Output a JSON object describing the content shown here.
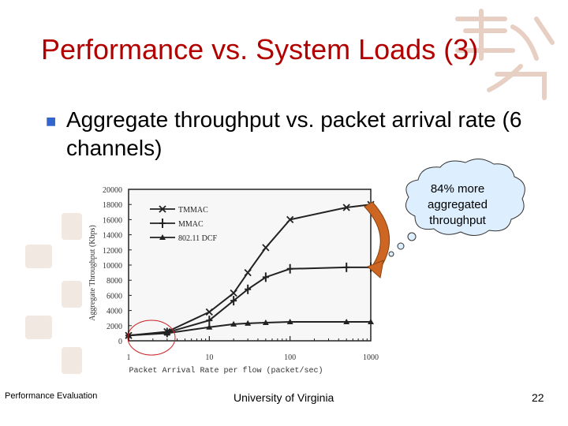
{
  "slide": {
    "title": "Performance vs. System Loads (3)",
    "bullet": "Aggregate throughput vs. packet arrival rate (6 channels)",
    "footer_left": "Performance Evaluation",
    "footer_center": "University of Virginia",
    "page_number": "22"
  },
  "callout": {
    "lines": [
      "84% more",
      "aggregated",
      "throughput"
    ],
    "fill_color": "#ddeeff",
    "arrow_color": "#cc6622"
  },
  "chart_data": {
    "type": "line",
    "xlabel": "Packet Arrival Rate per flow (packet/sec)",
    "ylabel": "Aggregate Throughput (Kbps)",
    "x_scale": "log",
    "xlim": [
      1,
      1000
    ],
    "ylim": [
      0,
      20000
    ],
    "x_ticks": [
      "1",
      "10",
      "100",
      "1000"
    ],
    "y_ticks": [
      "0",
      "2000",
      "4000",
      "6000",
      "8000",
      "10000",
      "12000",
      "14000",
      "16000",
      "18000",
      "20000"
    ],
    "grid": false,
    "legend_position": "top-left",
    "series": [
      {
        "name": "TMMAC",
        "marker": "x",
        "points": [
          [
            1,
            700
          ],
          [
            3,
            1200
          ],
          [
            10,
            3800
          ],
          [
            20,
            6300
          ],
          [
            30,
            9000
          ],
          [
            50,
            12300
          ],
          [
            100,
            16000
          ],
          [
            500,
            17600
          ],
          [
            1000,
            18000
          ]
        ]
      },
      {
        "name": "MMAC",
        "marker": "+",
        "points": [
          [
            1,
            700
          ],
          [
            3,
            1100
          ],
          [
            10,
            2700
          ],
          [
            20,
            5300
          ],
          [
            30,
            6800
          ],
          [
            50,
            8400
          ],
          [
            100,
            9500
          ],
          [
            500,
            9700
          ],
          [
            1000,
            9700
          ]
        ]
      },
      {
        "name": "802.11 DCF",
        "marker": "triangle",
        "points": [
          [
            1,
            700
          ],
          [
            3,
            1000
          ],
          [
            10,
            1800
          ],
          [
            20,
            2200
          ],
          [
            30,
            2300
          ],
          [
            50,
            2400
          ],
          [
            100,
            2500
          ],
          [
            500,
            2500
          ],
          [
            1000,
            2500
          ]
        ]
      }
    ]
  }
}
